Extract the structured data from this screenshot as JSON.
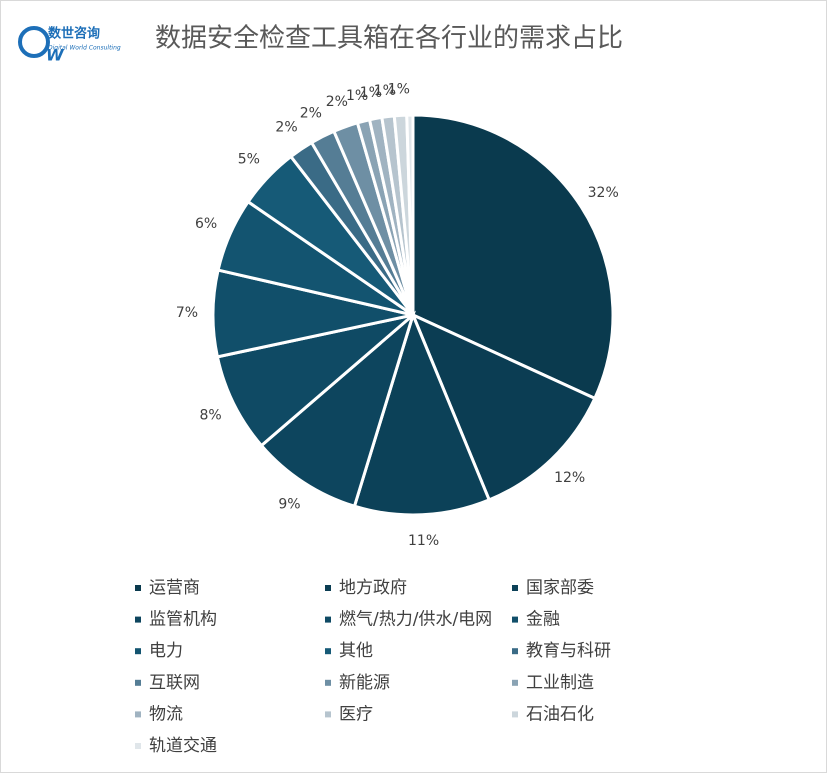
{
  "logo": {
    "name": "数世咨询",
    "subtitle": "Digital World Consulting"
  },
  "chart_data": {
    "type": "pie",
    "title": "数据安全检查工具箱在各行业的需求占比",
    "categories": [
      "运营商",
      "地方政府",
      "国家部委",
      "监管机构",
      "燃气/热力/供水/电网",
      "金融",
      "电力",
      "其他",
      "教育与科研",
      "互联网",
      "新能源",
      "工业制造",
      "物流",
      "医疗",
      "石油石化",
      "轨道交通"
    ],
    "values": [
      32,
      12,
      11,
      9,
      8,
      7,
      6,
      5,
      2,
      2,
      2,
      1,
      1,
      1,
      1,
      0.5
    ],
    "value_labels": [
      "32%",
      "12%",
      "11%",
      "9%",
      "8%",
      "7%",
      "6%",
      "5%",
      "2%",
      "2%",
      "2%",
      "1%",
      "1%",
      "1%",
      "1%",
      null
    ],
    "colors": [
      "#0a3a4e",
      "#0b3d53",
      "#0c4158",
      "#0d455e",
      "#0f4a64",
      "#114f6a",
      "#135470",
      "#165a77",
      "#3a6b86",
      "#557d95",
      "#6e8fa4",
      "#8aa3b4",
      "#a0b3c1",
      "#b6c4ce",
      "#ccd6dc",
      "#e0e6ea"
    ],
    "legend": "bottom"
  }
}
